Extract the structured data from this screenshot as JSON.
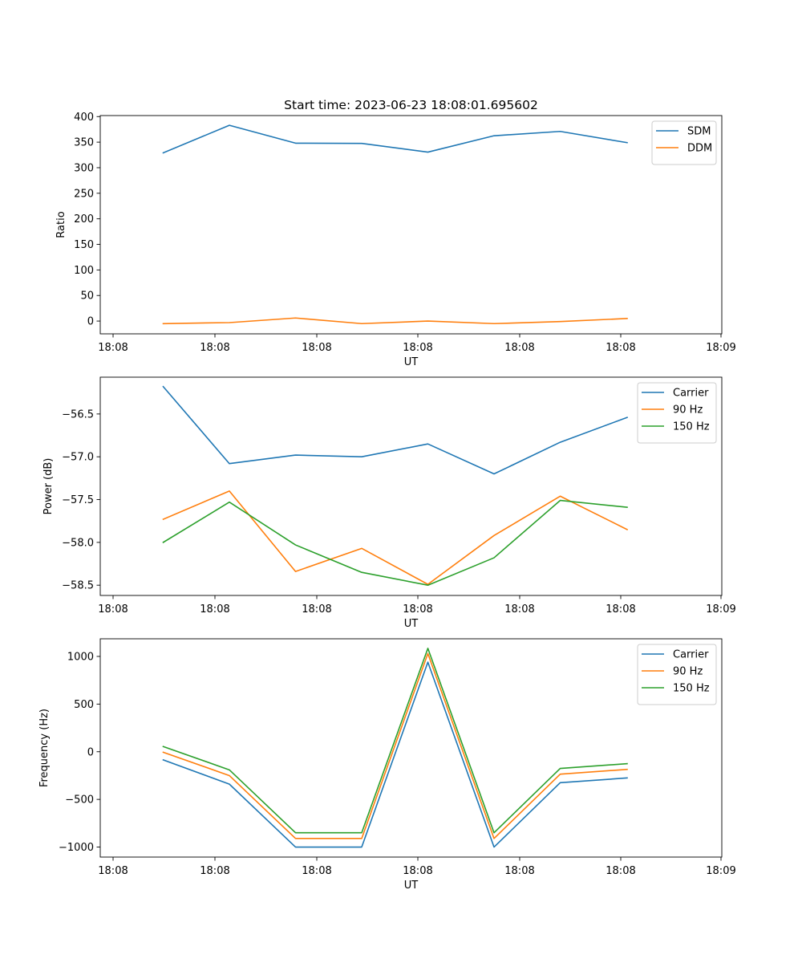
{
  "title": "Start time: 2023-06-23 18:08:01.695602",
  "colors": {
    "c1": "#1f77b4",
    "c2": "#ff7f0e",
    "c3": "#2ca02c"
  },
  "chart_data": [
    {
      "type": "line",
      "xlabel": "UT",
      "ylabel": "Ratio",
      "x_tick_labels": [
        "18:08",
        "18:08",
        "18:08",
        "18:08",
        "18:08",
        "18:08",
        "18:09"
      ],
      "ylim": [
        -25,
        402
      ],
      "y_ticks": [
        0,
        50,
        100,
        150,
        200,
        250,
        300,
        350,
        400
      ],
      "legend_position": "upper right",
      "series": [
        {
          "name": "SDM",
          "color": "#1f77b4",
          "values": [
            329,
            383,
            348,
            347.5,
            330.5,
            362.5,
            371,
            349
          ]
        },
        {
          "name": "DDM",
          "color": "#ff7f0e",
          "values": [
            -5,
            -3,
            6,
            -5,
            0,
            -5,
            -1,
            5
          ]
        }
      ]
    },
    {
      "type": "line",
      "xlabel": "UT",
      "ylabel": "Power (dB)",
      "x_tick_labels": [
        "18:08",
        "18:08",
        "18:08",
        "18:08",
        "18:08",
        "18:08",
        "18:09"
      ],
      "ylim": [
        -58.62,
        -56.07
      ],
      "y_ticks": [
        -58.5,
        -58.0,
        -57.5,
        -57.0,
        -56.5
      ],
      "y_tick_labels": [
        "−58.5",
        "−58.0",
        "−57.5",
        "−57.0",
        "−56.5"
      ],
      "legend_position": "upper right",
      "series": [
        {
          "name": "Carrier",
          "color": "#1f77b4",
          "values": [
            -56.18,
            -57.08,
            -56.98,
            -57.0,
            -56.85,
            -57.2,
            -56.83,
            -56.54
          ]
        },
        {
          "name": "90 Hz",
          "color": "#ff7f0e",
          "values": [
            -57.73,
            -57.4,
            -58.34,
            -58.07,
            -58.49,
            -57.92,
            -57.46,
            -57.85
          ]
        },
        {
          "name": "150 Hz",
          "color": "#2ca02c",
          "values": [
            -58.0,
            -57.53,
            -58.03,
            -58.35,
            -58.5,
            -58.18,
            -57.51,
            -57.59
          ]
        }
      ]
    },
    {
      "type": "line",
      "xlabel": "UT",
      "ylabel": "Frequency (Hz)",
      "x_tick_labels": [
        "18:08",
        "18:08",
        "18:08",
        "18:08",
        "18:08",
        "18:08",
        "18:09"
      ],
      "ylim": [
        -1105,
        1185
      ],
      "y_ticks": [
        -1000,
        -500,
        0,
        500,
        1000
      ],
      "y_tick_labels": [
        "−1000",
        "−500",
        "0",
        "500",
        "1000"
      ],
      "legend_position": "upper right",
      "series": [
        {
          "name": "Carrier",
          "color": "#1f77b4",
          "values": [
            -85,
            -340,
            -1000,
            -1000,
            940,
            -1000,
            -325,
            -275
          ]
        },
        {
          "name": "90 Hz",
          "color": "#ff7f0e",
          "values": [
            -5,
            -250,
            -910,
            -910,
            1030,
            -910,
            -235,
            -185
          ]
        },
        {
          "name": "150 Hz",
          "color": "#2ca02c",
          "values": [
            55,
            -190,
            -850,
            -850,
            1085,
            -850,
            -175,
            -125
          ]
        }
      ]
    }
  ]
}
